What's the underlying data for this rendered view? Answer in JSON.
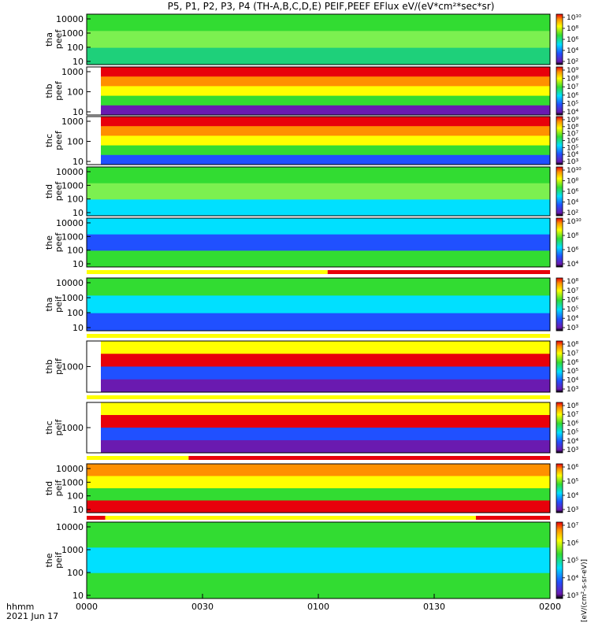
{
  "chart_data": {
    "type": "heatmap",
    "title": "P5, P1, P2, P3, P4 (TH-A,B,C,D,E) PEIF,PEEF EFlux eV/(eV*cm²*sec*sr)",
    "x_ticks": [
      "0000",
      "0030",
      "0100",
      "0130",
      "0200"
    ],
    "x_range_minutes": [
      0,
      120
    ],
    "time_label": "hhmm",
    "date_label": "2021 Jun 17",
    "colorbar_unit_label": "[eV/(cm²-s-sr-eV)]",
    "scale": "log",
    "panels": [
      {
        "probe": "tha",
        "species": "peef",
        "ylabel": [
          "tha",
          "peef"
        ],
        "yticks": [
          "10",
          "100",
          "1000",
          "10000"
        ],
        "cb_ticks": [
          "10²",
          "10⁴",
          "10⁶",
          "10⁸",
          "10¹⁰"
        ]
      },
      {
        "probe": "thb",
        "species": "peef",
        "ylabel": [
          "thb",
          "peef"
        ],
        "yticks": [
          "10",
          "100",
          "1000"
        ],
        "cb_ticks": [
          "10⁴",
          "10⁵",
          "10⁶",
          "10⁷",
          "10⁸",
          "10⁹"
        ]
      },
      {
        "probe": "thc",
        "species": "peef",
        "ylabel": [
          "thc",
          "peef"
        ],
        "yticks": [
          "10",
          "100",
          "1000"
        ],
        "cb_ticks": [
          "10³",
          "10⁴",
          "10⁵",
          "10⁶",
          "10⁷",
          "10⁸",
          "10⁹"
        ]
      },
      {
        "probe": "thd",
        "species": "peef",
        "ylabel": [
          "thd",
          "peef"
        ],
        "yticks": [
          "10",
          "100",
          "1000",
          "10000"
        ],
        "cb_ticks": [
          "10²",
          "10⁴",
          "10⁶",
          "10⁸",
          "10¹⁰"
        ]
      },
      {
        "probe": "the",
        "species": "peef",
        "ylabel": [
          "the",
          "peef"
        ],
        "yticks": [
          "10",
          "100",
          "1000",
          "10000"
        ],
        "cb_ticks": [
          "10⁴",
          "10⁶",
          "10⁸",
          "10¹⁰"
        ]
      },
      {
        "probe": "tha",
        "species": "peif",
        "ylabel": [
          "tha",
          "peif"
        ],
        "yticks": [
          "10",
          "100",
          "1000",
          "10000"
        ],
        "cb_ticks": [
          "10³",
          "10⁴",
          "10⁵",
          "10⁶",
          "10⁷",
          "10⁸"
        ]
      },
      {
        "probe": "thb",
        "species": "peif",
        "ylabel": [
          "thb",
          "peif"
        ],
        "yticks": [
          "1000"
        ],
        "cb_ticks": [
          "10³",
          "10⁴",
          "10⁵",
          "10⁶",
          "10⁷",
          "10⁸"
        ]
      },
      {
        "probe": "thc",
        "species": "peif",
        "ylabel": [
          "thc",
          "peif"
        ],
        "yticks": [
          "1000"
        ],
        "cb_ticks": [
          "10³",
          "10⁴",
          "10⁵",
          "10⁶",
          "10⁷",
          "10⁸"
        ]
      },
      {
        "probe": "thd",
        "species": "peif",
        "ylabel": [
          "thd",
          "peif"
        ],
        "yticks": [
          "10",
          "100",
          "1000",
          "10000"
        ],
        "cb_ticks": [
          "10³",
          "10⁴",
          "10⁵",
          "10⁶"
        ]
      },
      {
        "probe": "the",
        "species": "peif",
        "ylabel": [
          "the",
          "peif"
        ],
        "yticks": [
          "10",
          "100",
          "1000",
          "10000"
        ],
        "cb_ticks": [
          "10³",
          "10⁴",
          "10⁵",
          "10⁶",
          "10⁷"
        ]
      }
    ]
  },
  "colors": {
    "red": "#e8000b",
    "yellow": "#ffff00",
    "green": "#32dc32",
    "cyan": "#00e0ff",
    "blue": "#2050ff",
    "purple": "#6a1ab0"
  }
}
